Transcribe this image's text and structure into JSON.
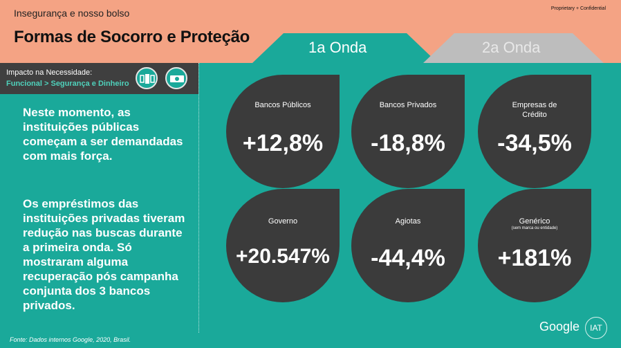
{
  "header": {
    "kicker": "Insegurança e nosso bolso",
    "title": "Formas de Socorro e Proteção",
    "confidential": "Proprietary + Confidential"
  },
  "tabs": [
    {
      "label": "1a Onda",
      "active": true
    },
    {
      "label": "2a Onda",
      "active": false
    }
  ],
  "impact": {
    "title": "Impacto na Necessidade:",
    "subtitle": "Funcional > Segurança e Dinheiro",
    "icons": [
      "security-icon",
      "money-icon"
    ]
  },
  "text": {
    "paragraph1": "Neste momento, as instituições públicas começam a ser demandadas com mais força.",
    "paragraph2": "Os empréstimos das instituições privadas tiveram redução nas buscas durante a primeira onda. Só mostraram alguma recuperação pós campanha conjunta dos 3 bancos privados."
  },
  "stats": [
    {
      "label": "Bancos Públicos",
      "value": "+12,8%"
    },
    {
      "label": "Bancos Privados",
      "value": "-18,8%"
    },
    {
      "label": "Empresas de Crédito",
      "value": "-34,5%"
    },
    {
      "label": "Governo",
      "value": "+20.547%"
    },
    {
      "label": "Agiotas",
      "value": "-44,4%"
    },
    {
      "label": "Genérico",
      "sublabel": "(sem marca ou entidade)",
      "value": "+181%"
    }
  ],
  "footer": {
    "source": "Fonte: Dados internos Google, 2020, Brasil.",
    "brand": "Google",
    "partner": "IAT"
  },
  "colors": {
    "header_bg": "#f4a384",
    "teal": "#1aa99a",
    "dark": "#3b3b3b",
    "inactive_tab": "#bdbdbd"
  }
}
